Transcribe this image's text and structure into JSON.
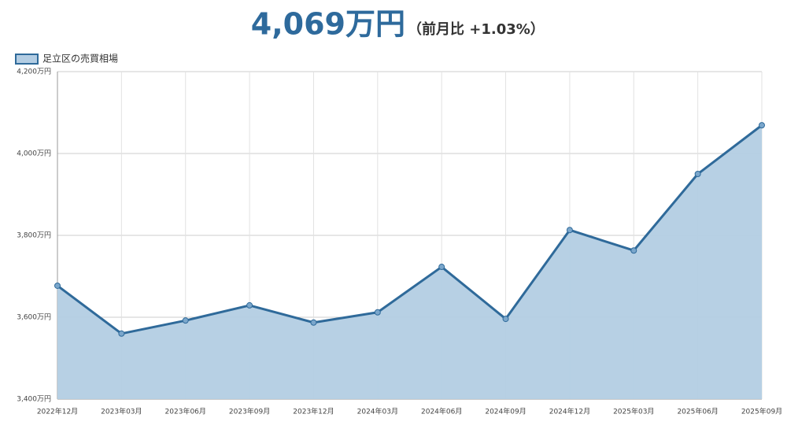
{
  "chart_data": {
    "type": "area",
    "title": "4,069万円",
    "subtitle": "（前月比 +1.03%）",
    "categories": [
      "2022年12月",
      "2023年03月",
      "2023年06月",
      "2023年09月",
      "2023年12月",
      "2024年03月",
      "2024年06月",
      "2024年09月",
      "2024年12月",
      "2025年03月",
      "2025年06月",
      "2025年09月"
    ],
    "series": [
      {
        "name": "足立区の売買相場",
        "color": "#2f6a9a",
        "fill": "#b3cde3",
        "values": [
          3677,
          3560,
          3592,
          3629,
          3587,
          3612,
          3723,
          3596,
          3813,
          3763,
          3950,
          4069
        ]
      }
    ],
    "ylim": [
      3400,
      4200
    ],
    "yticks": [
      {
        "value": 3400,
        "label": "3,400万円"
      },
      {
        "value": 3600,
        "label": "3,600万円"
      },
      {
        "value": 3800,
        "label": "3,800万円"
      },
      {
        "value": 4000,
        "label": "4,000万円"
      },
      {
        "value": 4200,
        "label": "4,200万円"
      }
    ],
    "grid": true
  }
}
